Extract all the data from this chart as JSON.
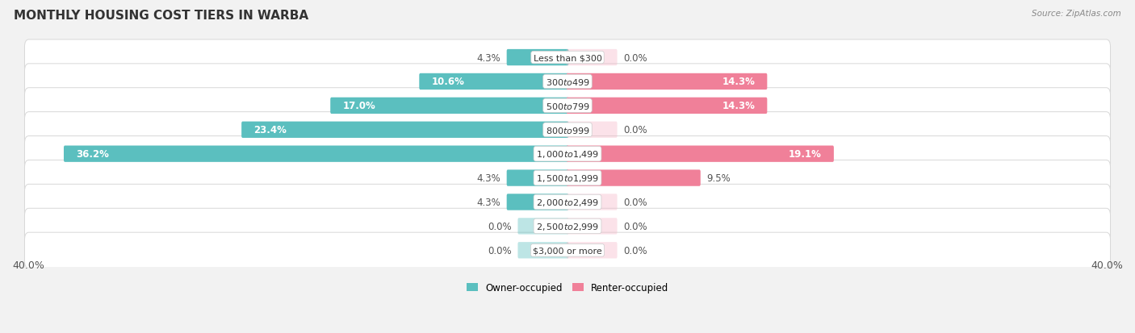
{
  "title": "MONTHLY HOUSING COST TIERS IN WARBA",
  "source": "Source: ZipAtlas.com",
  "categories": [
    "Less than $300",
    "$300 to $499",
    "$500 to $799",
    "$800 to $999",
    "$1,000 to $1,499",
    "$1,500 to $1,999",
    "$2,000 to $2,499",
    "$2,500 to $2,999",
    "$3,000 or more"
  ],
  "owner_values": [
    4.3,
    10.6,
    17.0,
    23.4,
    36.2,
    4.3,
    4.3,
    0.0,
    0.0
  ],
  "renter_values": [
    0.0,
    14.3,
    14.3,
    0.0,
    19.1,
    9.5,
    0.0,
    0.0,
    0.0
  ],
  "owner_color": "#5bbfbf",
  "renter_color": "#f08099",
  "renter_color_light": "#f5b8c8",
  "background_color": "#f2f2f2",
  "row_bg_color": "#ffffff",
  "row_edge_color": "#d8d8d8",
  "xlim": 40.0,
  "bar_height": 0.52,
  "stub_size": 3.5,
  "label_fontsize": 8.5,
  "cat_fontsize": 8.0,
  "title_fontsize": 11,
  "source_fontsize": 7.5,
  "axis_label_fontsize": 9,
  "value_color": "#555555",
  "value_color_white": "#ffffff"
}
